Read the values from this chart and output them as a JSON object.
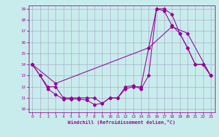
{
  "title": "",
  "xlabel": "Windchill (Refroidissement éolien,°C)",
  "ylabel": "",
  "background_color": "#c8ecec",
  "line_color": "#990099",
  "grid_color": "#aaaacc",
  "xlim": [
    -0.5,
    23.5
  ],
  "ylim": [
    9.7,
    19.3
  ],
  "xticks": [
    0,
    1,
    2,
    3,
    4,
    5,
    6,
    7,
    8,
    9,
    10,
    11,
    12,
    13,
    14,
    15,
    16,
    17,
    18,
    19,
    20,
    21,
    22,
    23
  ],
  "yticks": [
    10,
    11,
    12,
    13,
    14,
    15,
    16,
    17,
    18,
    19
  ],
  "series1_x": [
    0,
    1,
    2,
    3,
    4,
    5,
    6,
    7,
    8,
    9,
    10,
    11,
    12,
    13,
    14,
    15,
    16,
    17,
    18,
    19,
    20,
    21,
    22,
    23
  ],
  "series1_y": [
    14,
    13,
    12,
    12,
    11,
    11,
    11,
    11,
    11,
    10.5,
    11,
    11,
    11.8,
    12,
    12,
    15.5,
    19,
    18.8,
    17.5,
    16.8,
    15.5,
    14,
    14,
    13
  ],
  "series2_x": [
    0,
    1,
    2,
    3,
    4,
    5,
    6,
    7,
    8,
    9,
    10,
    11,
    12,
    13,
    14,
    15,
    16,
    17,
    18,
    19,
    20,
    21,
    22,
    23
  ],
  "series2_y": [
    14,
    13,
    11.8,
    11.3,
    10.9,
    10.9,
    10.9,
    10.8,
    10.4,
    10.5,
    11,
    11,
    12,
    12.1,
    11.8,
    13,
    19,
    19,
    18.5,
    16.8,
    15.5,
    14,
    14,
    13
  ],
  "series3_x": [
    0,
    3,
    15,
    18,
    20,
    23
  ],
  "series3_y": [
    14,
    12.3,
    15.5,
    17.4,
    16.8,
    13
  ]
}
